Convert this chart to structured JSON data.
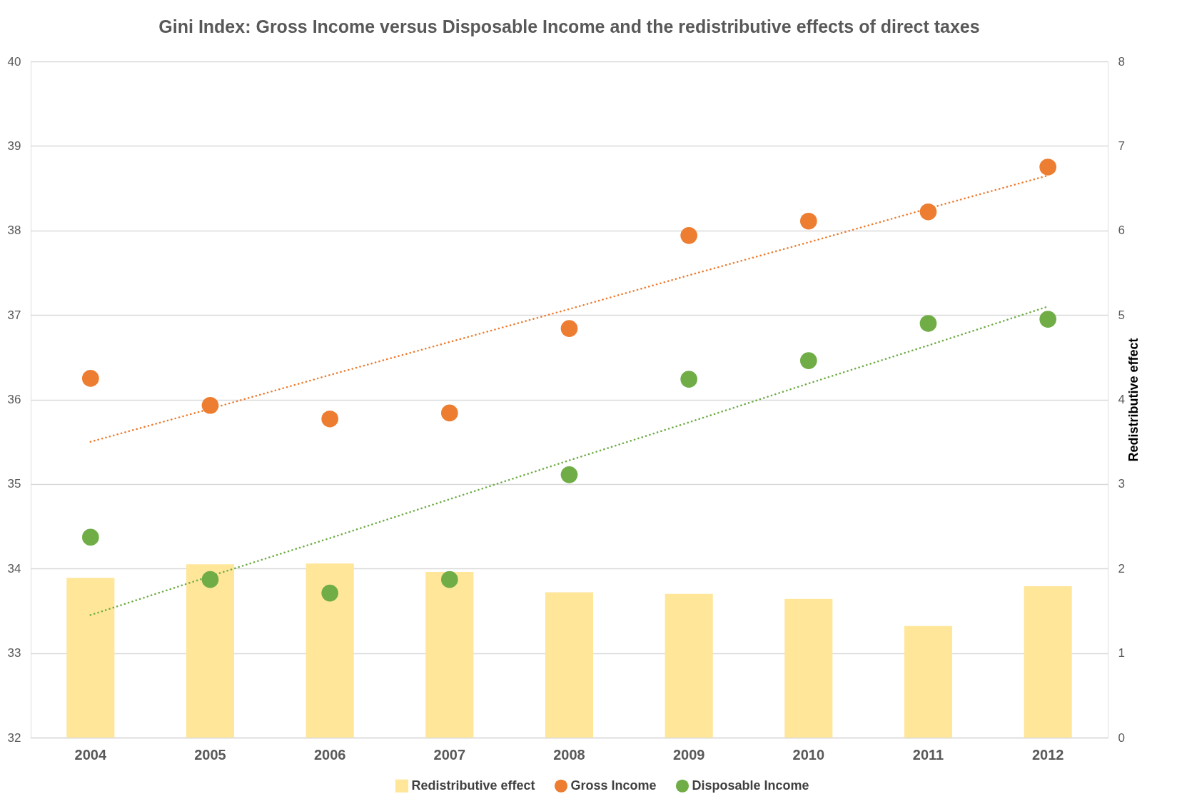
{
  "chart_data": {
    "type": "scatter",
    "title": "Gini Index: Gross Income versus Disposable Income and the redistributive effects of direct taxes",
    "y2label": "Redistributive effect",
    "categories": [
      "2004",
      "2005",
      "2006",
      "2007",
      "2008",
      "2009",
      "2010",
      "2011",
      "2012"
    ],
    "series": [
      {
        "name": "Redistributive effect",
        "type": "bar",
        "axis": "y2",
        "color": "#ffe699",
        "values": [
          1.89,
          2.05,
          2.06,
          1.96,
          1.72,
          1.7,
          1.64,
          1.32,
          1.79
        ]
      },
      {
        "name": "Gross Income",
        "color": "#ed7d31",
        "marker": "circle",
        "values": [
          36.25,
          35.93,
          35.77,
          35.84,
          36.84,
          37.94,
          38.11,
          38.22,
          38.75
        ]
      },
      {
        "name": "Disposable Income",
        "color": "#70ad47",
        "marker": "circle",
        "values": [
          34.37,
          33.87,
          33.71,
          33.87,
          35.11,
          36.24,
          36.46,
          36.9,
          36.95
        ]
      },
      {
        "type": "line",
        "color": "#ed7d31",
        "line_style": "dotted",
        "marker": "none",
        "values": [
          35.5,
          35.89,
          36.29,
          36.68,
          37.07,
          37.47,
          37.86,
          38.26,
          38.65
        ]
      },
      {
        "type": "line",
        "color": "#70ad47",
        "line_style": "dotted",
        "marker": "none",
        "values": [
          33.45,
          33.91,
          34.36,
          34.82,
          35.28,
          35.73,
          36.19,
          36.64,
          37.1
        ]
      }
    ],
    "ylim": [
      32,
      40
    ],
    "yticks": [
      32,
      33,
      34,
      35,
      36,
      37,
      38,
      39,
      40
    ],
    "y2lim": [
      0,
      8
    ],
    "y2ticks": [
      0,
      1,
      2,
      3,
      4,
      5,
      6,
      7,
      8
    ],
    "grid": "y",
    "legend": "bottom"
  }
}
